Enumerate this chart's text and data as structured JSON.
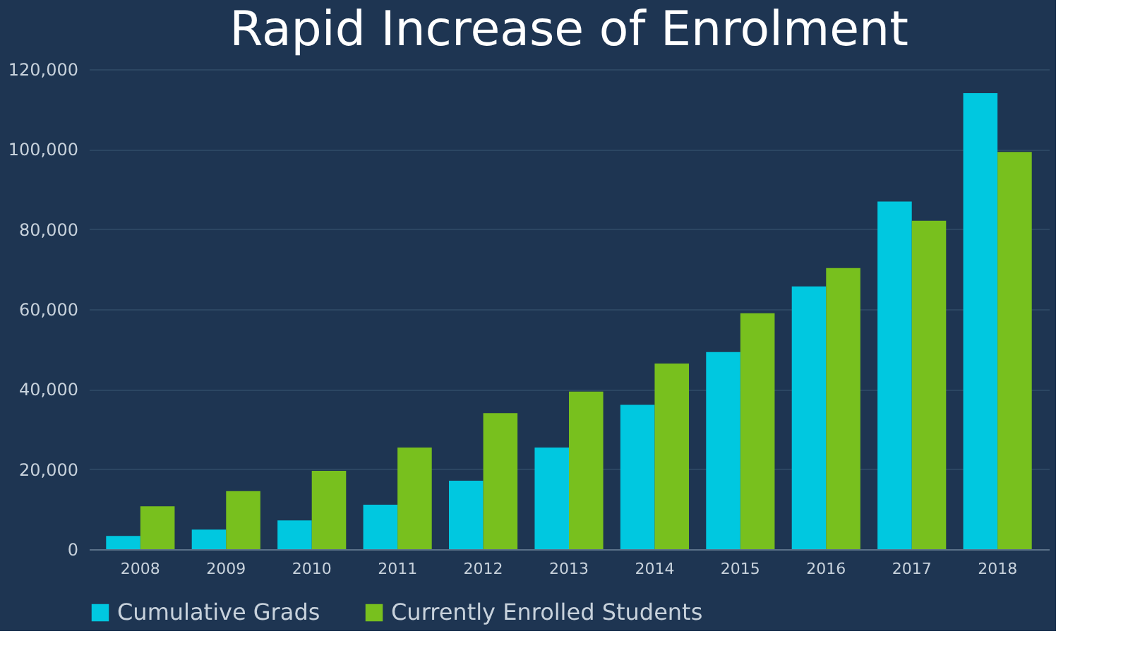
{
  "chart_data": {
    "type": "bar",
    "title": "Rapid Increase of Enrolment",
    "categories": [
      "2008",
      "2009",
      "2010",
      "2011",
      "2012",
      "2013",
      "2014",
      "2015",
      "2016",
      "2017",
      "2018"
    ],
    "series": [
      {
        "name": "Cumulative Grads",
        "color": "#00c8e0",
        "values": [
          3300,
          4900,
          7200,
          11100,
          17100,
          25400,
          36100,
          49300,
          65700,
          86900,
          114000
        ]
      },
      {
        "name": "Currently Enrolled Students",
        "color": "#78c01e",
        "values": [
          10700,
          14500,
          19600,
          25400,
          34000,
          39400,
          46400,
          59000,
          70300,
          82100,
          99300
        ]
      }
    ],
    "ylim": [
      0,
      120000
    ],
    "yticks": [
      0,
      {
        "value": 20000,
        "label": "20,000"
      },
      {
        "value": 40000,
        "label": "40,000"
      },
      {
        "value": 60000,
        "label": "60,000"
      },
      {
        "value": 80000,
        "label": "80,000"
      },
      {
        "value": 100000,
        "label": "100,000"
      },
      {
        "value": 120000,
        "label": "120,000"
      }
    ],
    "grid": "y",
    "legend": "bottom"
  }
}
